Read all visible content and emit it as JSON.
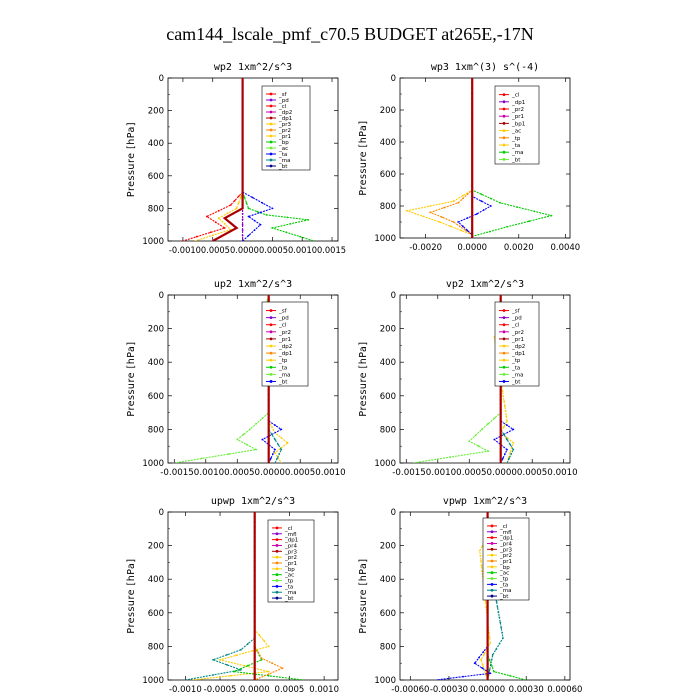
{
  "figure_title": "cam144_lscale_pmf_c70.5  BUDGET at265E,-17N",
  "colors": {
    "red": "#ff0000",
    "darkred": "#aa0000",
    "orange": "#ff8800",
    "yellow": "#ffcc00",
    "green": "#00cc00",
    "lightgreen": "#66ee33",
    "blue": "#0000ff",
    "teal": "#008888",
    "cyan": "#00cccc",
    "purple": "#8800cc",
    "magenta": "#cc00aa",
    "navy": "#000088",
    "olive": "#999900"
  },
  "chart_data": [
    {
      "type": "line",
      "title": "wp2   1xm^2/s^3",
      "ylabel": "Pressure [hPa]",
      "xlim": [
        -0.00125,
        0.0016
      ],
      "ylim": [
        1000,
        0
      ],
      "xticks": [
        -0.001,
        -0.0005,
        0,
        0.0005,
        0.001,
        0.0015
      ],
      "xtick_label": "-0.00100.00050.00000.00050.00100.0015",
      "yticks": [
        0,
        200,
        400,
        600,
        800,
        1000
      ],
      "legend": [
        "_sf",
        "_pd",
        "_cl",
        "_dp2",
        "_dp1",
        "_pr3",
        "_pr2",
        "_pr1",
        "_bp",
        "_ac",
        "_ta",
        "_ma",
        "_bt"
      ],
      "series": [
        {
          "color": "#8800cc",
          "x": [
            0,
            0,
            0,
            0,
            0,
            0,
            0
          ],
          "y": [
            0,
            200,
            400,
            600,
            800,
            900,
            1000
          ]
        },
        {
          "color": "#ff0000",
          "x": [
            0,
            0,
            -0.0002,
            -0.0006,
            -0.0003,
            -0.001
          ],
          "y": [
            0,
            700,
            780,
            850,
            920,
            1000
          ]
        },
        {
          "color": "#ffcc00",
          "x": [
            0,
            0,
            -0.0001,
            -0.0004,
            -0.0002,
            -0.0008
          ],
          "y": [
            0,
            700,
            800,
            860,
            930,
            1000
          ]
        },
        {
          "color": "#00cc00",
          "x": [
            0,
            0,
            0.0001,
            0.0004,
            0.0011,
            0.0005,
            0.0012
          ],
          "y": [
            0,
            700,
            800,
            840,
            870,
            920,
            1000
          ]
        },
        {
          "color": "#0000ff",
          "x": [
            0,
            0,
            0.0005,
            0.0001,
            0.0003,
            0
          ],
          "y": [
            0,
            700,
            800,
            850,
            900,
            1000
          ]
        },
        {
          "color": "#aa0000",
          "x": [
            0,
            0,
            -0.0003,
            -0.0001,
            -0.0005
          ],
          "y": [
            0,
            800,
            860,
            920,
            1000
          ]
        }
      ]
    },
    {
      "type": "line",
      "title": "wp3   1xm^(3) s^(-4)",
      "ylabel": "Pressure [hPa]",
      "xlim": [
        -0.0031,
        0.0042
      ],
      "ylim": [
        1000,
        0
      ],
      "xticks": [
        -0.002,
        0,
        0.002,
        0.004
      ],
      "xtick_labels": [
        "-0.0020",
        "0.0000",
        "0.0020",
        "0.0040"
      ],
      "yticks": [
        0,
        200,
        400,
        600,
        800,
        1000
      ],
      "legend": [
        "_cl",
        "_dp1",
        "_pr2",
        "_pr1",
        "_bp1",
        "_ac",
        "_tp",
        "_ta",
        "_ma",
        "_bt"
      ],
      "series": [
        {
          "color": "#ffcc00",
          "x": [
            0,
            0,
            -0.0008,
            -0.0028,
            -0.0014,
            0
          ],
          "y": [
            0,
            700,
            770,
            830,
            900,
            980
          ]
        },
        {
          "color": "#ff8800",
          "x": [
            0,
            0,
            -0.0006,
            -0.0018,
            -0.0008,
            0
          ],
          "y": [
            0,
            700,
            780,
            840,
            900,
            980
          ]
        },
        {
          "color": "#00cc00",
          "x": [
            0,
            0,
            0.0012,
            0.0034,
            0.0015,
            0
          ],
          "y": [
            0,
            700,
            780,
            860,
            930,
            990
          ]
        },
        {
          "color": "#0000ff",
          "x": [
            0,
            0,
            0.0008,
            0.0002,
            -0.0006,
            0
          ],
          "y": [
            0,
            740,
            800,
            850,
            900,
            980
          ]
        },
        {
          "color": "#aa0000",
          "x": [
            0,
            0,
            0,
            0,
            0
          ],
          "y": [
            0,
            200,
            500,
            800,
            1000
          ]
        }
      ]
    },
    {
      "type": "line",
      "title": "up2   1xm^2/s^3",
      "ylabel": "Pressure [hPa]",
      "xlim": [
        -0.0016,
        0.0011
      ],
      "ylim": [
        1000,
        0
      ],
      "xticks": [
        -0.0015,
        -0.001,
        -0.0005,
        0,
        0.0005,
        0.001
      ],
      "xtick_label": "-0.00150.00100.00050.00000.00050.0010",
      "yticks": [
        0,
        200,
        400,
        600,
        800,
        1000
      ],
      "legend": [
        "_sf",
        "_pd",
        "_cl",
        "_pr2",
        "_pr1",
        "_dp2",
        "_dp1",
        "_tp",
        "_ta",
        "_ma",
        "_bt"
      ],
      "series": [
        {
          "color": "#66ee33",
          "x": [
            0,
            -0.0001,
            0,
            0,
            -0.0003,
            -0.0005,
            -0.0002,
            -0.0015
          ],
          "y": [
            0,
            150,
            300,
            700,
            800,
            860,
            920,
            1000
          ]
        },
        {
          "color": "#ffcc00",
          "x": [
            0,
            0,
            0.0001,
            0.0003,
            0.0001,
            0.0002
          ],
          "y": [
            0,
            750,
            820,
            880,
            940,
            1000
          ]
        },
        {
          "color": "#0000ff",
          "x": [
            0,
            0,
            0.0002,
            -0.0001,
            0.0001,
            0
          ],
          "y": [
            0,
            750,
            800,
            860,
            920,
            1000
          ]
        },
        {
          "color": "#008888",
          "x": [
            0,
            0,
            0.0001,
            0.0002,
            0.0001
          ],
          "y": [
            0,
            800,
            860,
            920,
            1000
          ]
        },
        {
          "color": "#aa0000",
          "x": [
            0,
            0,
            0,
            0,
            0
          ],
          "y": [
            0,
            200,
            500,
            800,
            1000
          ]
        }
      ]
    },
    {
      "type": "line",
      "title": "vp2   1xm^2/s^3",
      "ylabel": "Pressure [hPa]",
      "xlim": [
        -0.0016,
        0.0011
      ],
      "ylim": [
        1000,
        0
      ],
      "xticks": [
        -0.0015,
        -0.001,
        -0.0005,
        0,
        0.0005,
        0.001
      ],
      "xtick_label": "-0.00150.00100.00050.00000.00050.0010",
      "yticks": [
        0,
        200,
        400,
        600,
        800,
        1000
      ],
      "legend": [
        "_sf",
        "_pd",
        "_cl",
        "_pr2",
        "_pr1",
        "_dp2",
        "_dp1",
        "_tp",
        "_ta",
        "_ma",
        "_bt"
      ],
      "series": [
        {
          "color": "#66ee33",
          "x": [
            0,
            0,
            -0.0003,
            -0.0005,
            -0.0002,
            -0.0014
          ],
          "y": [
            0,
            700,
            800,
            870,
            930,
            1000
          ]
        },
        {
          "color": "#ffcc00",
          "x": [
            0,
            0,
            -0.0001,
            0.0001,
            0,
            0.0002,
            0.0001
          ],
          "y": [
            0,
            150,
            250,
            750,
            820,
            880,
            1000
          ]
        },
        {
          "color": "#0000ff",
          "x": [
            0,
            0,
            0.0002,
            -0.0001,
            0.0001,
            0
          ],
          "y": [
            0,
            750,
            800,
            860,
            920,
            1000
          ]
        },
        {
          "color": "#008888",
          "x": [
            0,
            0,
            0.0001,
            0.0002,
            0.0001
          ],
          "y": [
            0,
            800,
            860,
            920,
            1000
          ]
        },
        {
          "color": "#aa0000",
          "x": [
            0,
            0,
            0,
            0,
            0
          ],
          "y": [
            0,
            200,
            500,
            800,
            1000
          ]
        }
      ]
    },
    {
      "type": "line",
      "title": "upwp   1xm^2/s^3",
      "ylabel": "Pressure [hPa]",
      "xlim": [
        -0.00125,
        0.0012
      ],
      "ylim": [
        1000,
        0
      ],
      "xticks": [
        -0.001,
        -0.0005,
        0,
        0.0005,
        0.001
      ],
      "xtick_labels": [
        "-0.0010",
        "-0.0005",
        "0.0000",
        "0.0005",
        "0.0010"
      ],
      "yticks": [
        0,
        200,
        400,
        600,
        800,
        1000
      ],
      "legend": [
        "_cl",
        "_mfl",
        "_dp1",
        "_pr4",
        "_pr3",
        "_pr2",
        "_pr1",
        "_bp",
        "_ac",
        "_tp",
        "_ta",
        "_ma",
        "_bt"
      ],
      "series": [
        {
          "color": "#008888",
          "x": [
            0,
            0,
            -0.0002,
            -0.0006,
            -0.0002,
            -0.001
          ],
          "y": [
            0,
            750,
            820,
            880,
            940,
            1000
          ]
        },
        {
          "color": "#ffcc00",
          "x": [
            0,
            0,
            0.0002,
            -0.0005,
            0.0002,
            -0.0009
          ],
          "y": [
            0,
            700,
            800,
            880,
            950,
            1000
          ]
        },
        {
          "color": "#00cc00",
          "x": [
            0,
            0,
            0.0001,
            -0.0003,
            0.0007
          ],
          "y": [
            0,
            800,
            880,
            950,
            1000
          ]
        },
        {
          "color": "#ff8800",
          "x": [
            0,
            0,
            0.0001,
            0.0004,
            0
          ],
          "y": [
            0,
            800,
            870,
            930,
            1000
          ]
        },
        {
          "color": "#aa0000",
          "x": [
            0,
            0,
            0,
            0,
            0
          ],
          "y": [
            0,
            200,
            500,
            800,
            1000
          ]
        }
      ]
    },
    {
      "type": "line",
      "title": "vpwp   1xm^2/s^3",
      "ylabel": "Pressure [hPa]",
      "xlim": [
        -0.00068,
        0.00064
      ],
      "ylim": [
        1000,
        0
      ],
      "xticks": [
        -0.0006,
        -0.0003,
        0,
        0.0003,
        0.0006
      ],
      "xtick_labels": [
        "-0.00060",
        "-0.00030",
        "0.00000",
        "0.00030",
        "0.00060"
      ],
      "yticks": [
        0,
        200,
        400,
        600,
        800,
        1000
      ],
      "legend": [
        "_cl",
        "_mfl",
        "_dp1",
        "_pr4",
        "_pr3",
        "_pr2",
        "_pr1",
        "_bp",
        "_ac",
        "_tp",
        "_ta",
        "_ma",
        "_bt"
      ],
      "series": [
        {
          "color": "#008888",
          "x": [
            0,
            0,
            4e-05,
            0.0001,
            2e-05,
            0.00012,
            4e-05,
            0
          ],
          "y": [
            0,
            150,
            200,
            260,
            320,
            750,
            850,
            1000
          ]
        },
        {
          "color": "#ffcc00",
          "x": [
            0,
            0,
            -6e-05,
            2e-05,
            -5e-05,
            0
          ],
          "y": [
            0,
            150,
            230,
            780,
            880,
            1000
          ]
        },
        {
          "color": "#0000ff",
          "x": [
            0,
            0,
            -0.0001,
            2e-05,
            -0.0004
          ],
          "y": [
            0,
            800,
            900,
            960,
            1000
          ]
        },
        {
          "color": "#00cc00",
          "x": [
            0,
            0,
            5e-05,
            0.0003
          ],
          "y": [
            0,
            850,
            950,
            1000
          ]
        },
        {
          "color": "#aa0000",
          "x": [
            0,
            0,
            0,
            0,
            0
          ],
          "y": [
            0,
            200,
            500,
            800,
            1000
          ]
        }
      ]
    }
  ]
}
